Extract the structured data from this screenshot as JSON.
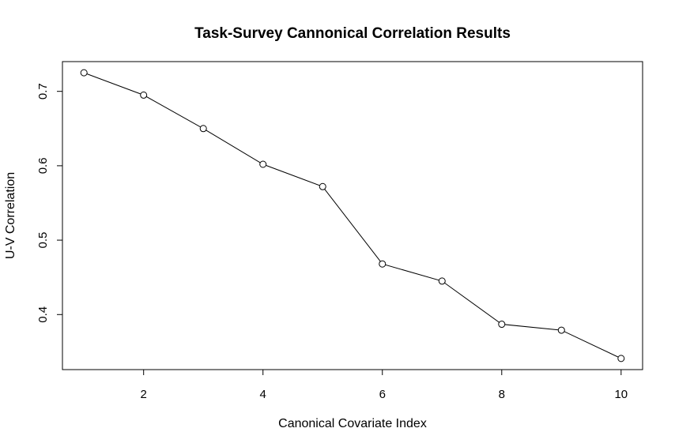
{
  "chart_data": {
    "type": "line",
    "title": "Task-Survey Cannonical Correlation Results",
    "xlabel": "Canonical Covariate Index",
    "ylabel": "U-V Correlation",
    "x": [
      1,
      2,
      3,
      4,
      5,
      6,
      7,
      8,
      9,
      10
    ],
    "series": [
      {
        "values": [
          0.725,
          0.695,
          0.65,
          0.602,
          0.572,
          0.468,
          0.445,
          0.387,
          0.379,
          0.341
        ]
      }
    ],
    "xlim": [
      0.64,
      10.36
    ],
    "ylim": [
      0.326,
      0.74
    ],
    "xticks": [
      2,
      4,
      6,
      8,
      10
    ],
    "yticks": [
      0.4,
      0.5,
      0.6,
      0.7
    ],
    "xtick_labels": [
      "2",
      "4",
      "6",
      "8",
      "10"
    ],
    "ytick_labels": [
      "0.4",
      "0.5",
      "0.6",
      "0.7"
    ],
    "marker": "open-circle",
    "line_color": "#000000",
    "grid": false,
    "legend": "none"
  }
}
